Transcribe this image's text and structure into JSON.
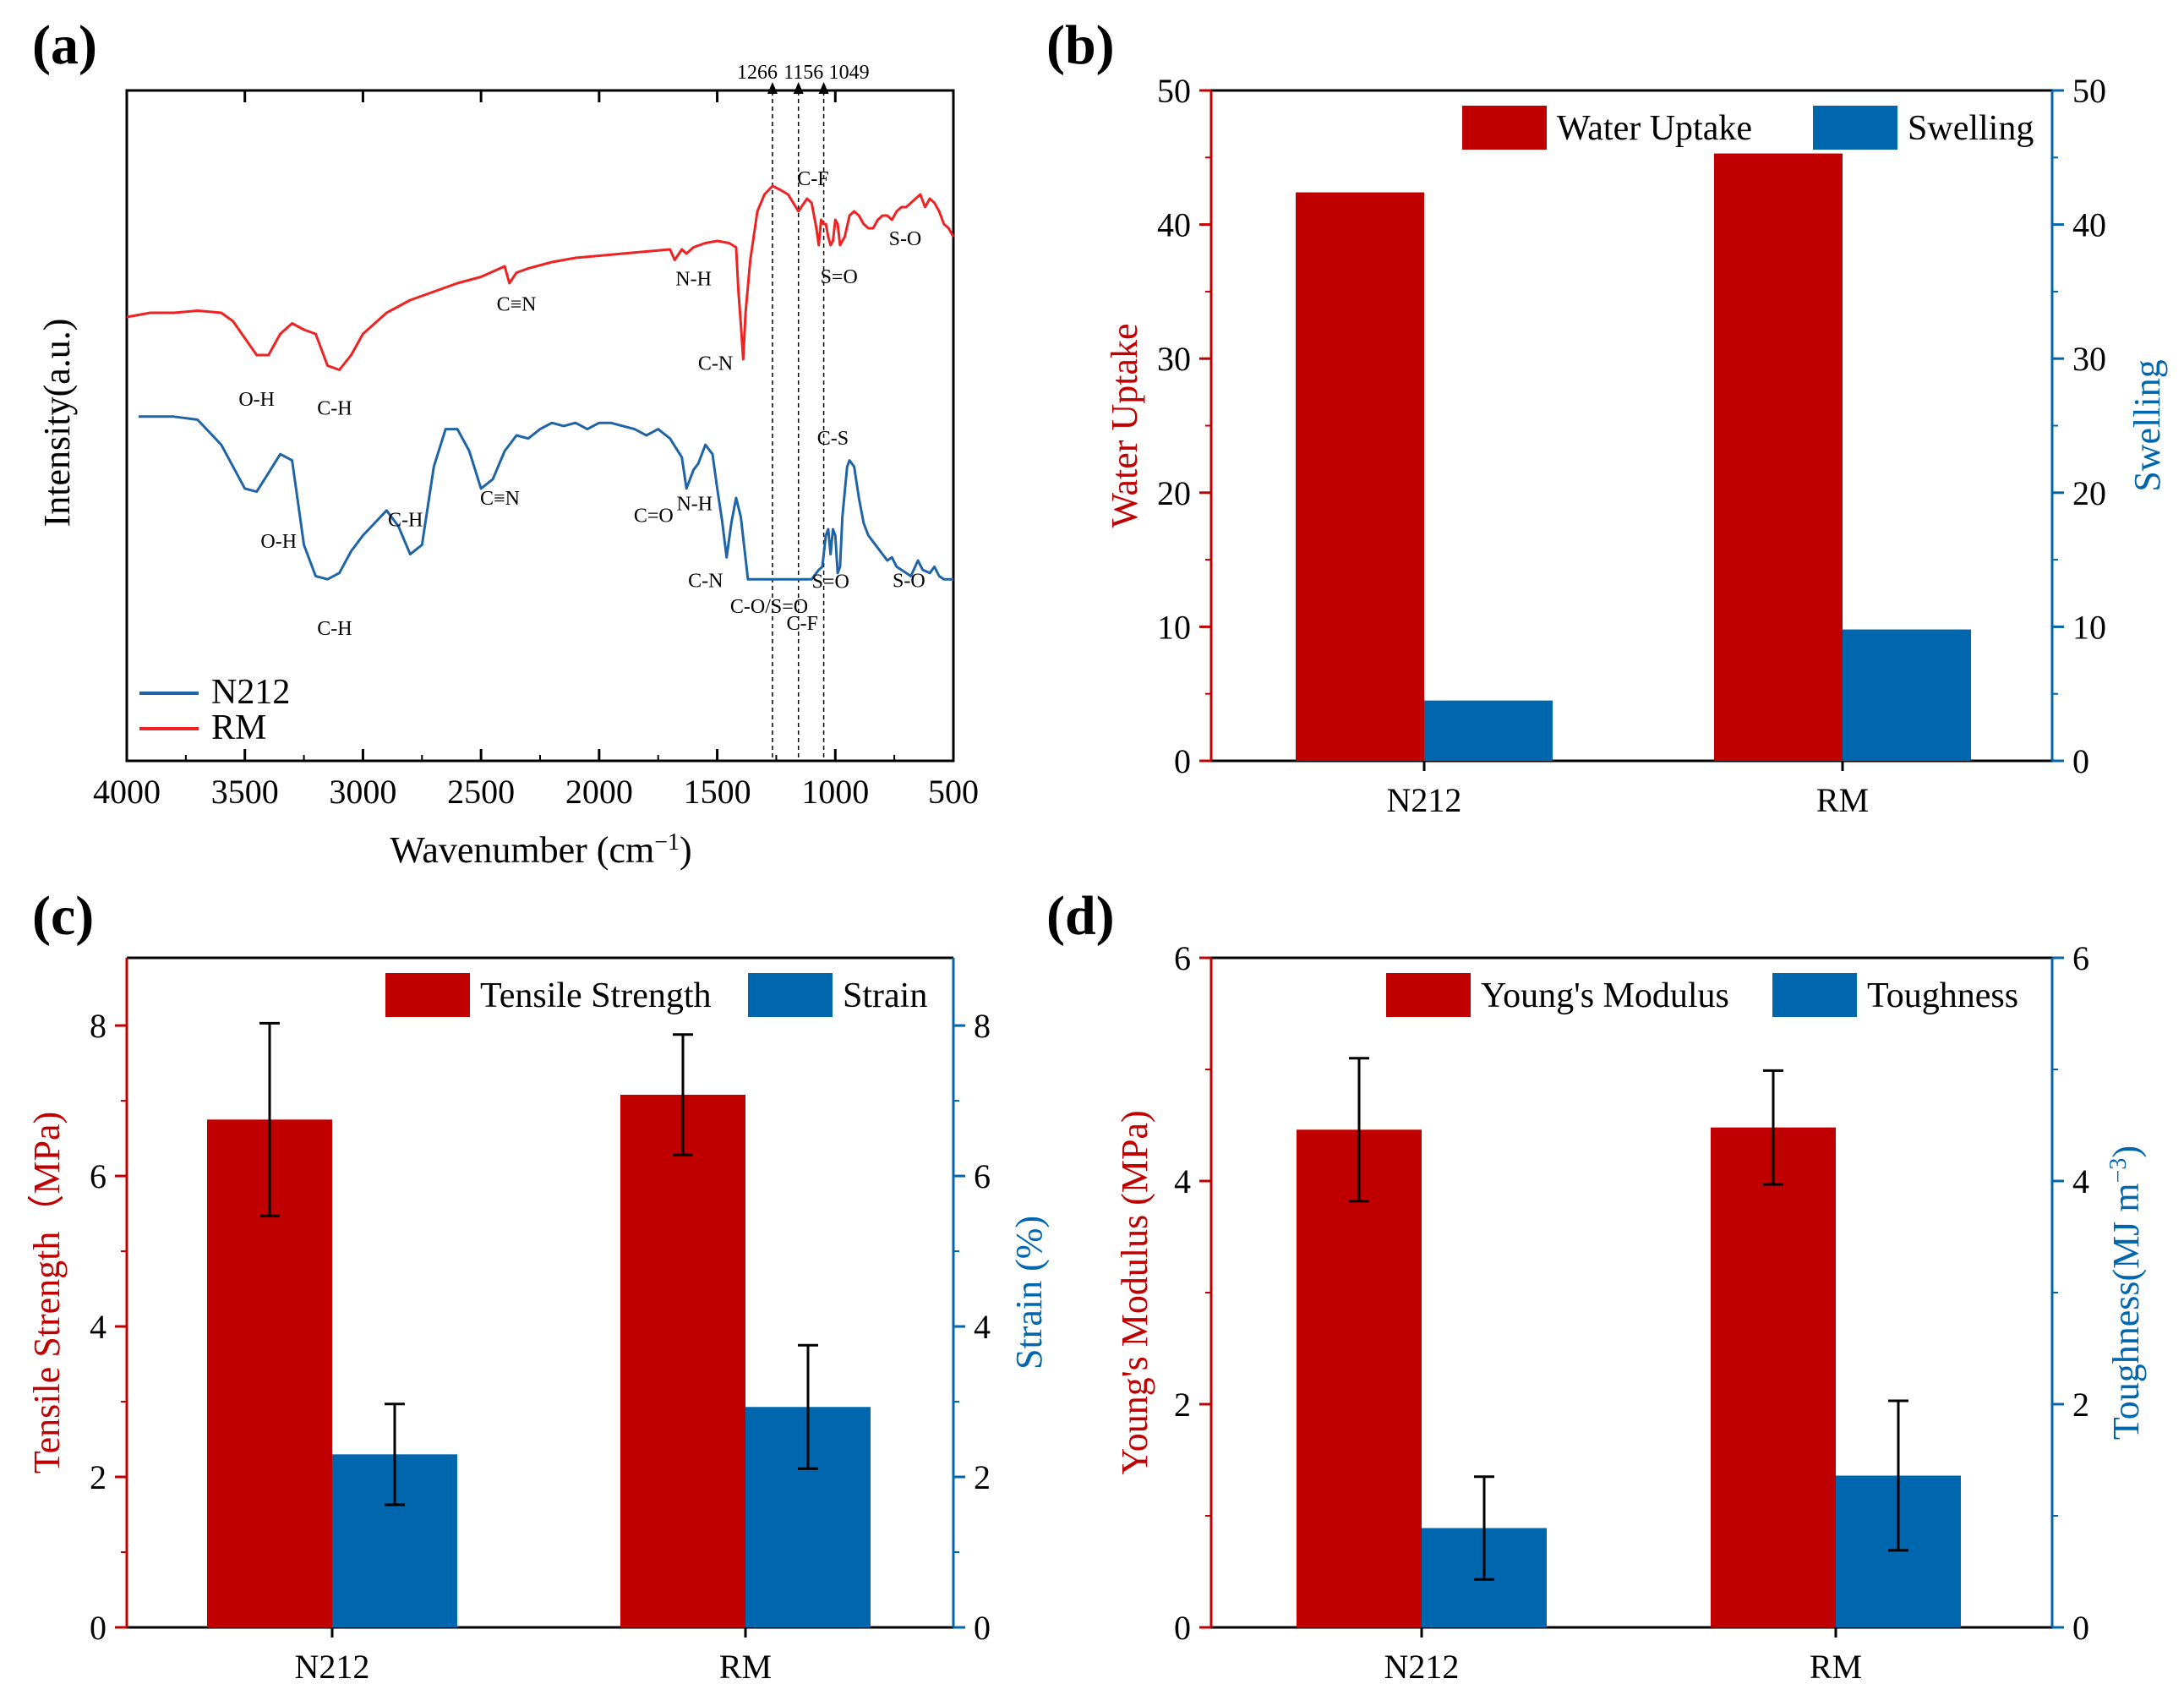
{
  "chart_data": [
    {
      "panel": "(a)",
      "type": "line",
      "xlabel_main": "Wavenumber (cm",
      "xlabel_sup": "−1",
      "xlabel_close": ")",
      "ylabel": "Intensity(a.u.)",
      "xlim": [
        4000,
        500
      ],
      "x_ticks": [
        "4000",
        "3500",
        "3000",
        "2500",
        "2000",
        "1500",
        "1000",
        "500"
      ],
      "x_tick_values": [
        4000,
        3500,
        3000,
        2500,
        2000,
        1500,
        1000,
        500
      ],
      "reference_lines": [
        {
          "label": "1266",
          "value": 1266
        },
        {
          "label": "1156",
          "value": 1156
        },
        {
          "label": "1049",
          "value": 1049
        }
      ],
      "series": [
        {
          "name": "N212",
          "color": "#1f64a6",
          "offset": 0,
          "x": [
            3950,
            3800,
            3700,
            3600,
            3500,
            3450,
            3400,
            3350,
            3300,
            3250,
            3200,
            3150,
            3100,
            3050,
            3000,
            2950,
            2900,
            2850,
            2800,
            2750,
            2700,
            2650,
            2600,
            2550,
            2500,
            2450,
            2400,
            2350,
            2300,
            2250,
            2200,
            2150,
            2100,
            2050,
            2000,
            1950,
            1900,
            1850,
            1800,
            1750,
            1700,
            1650,
            1630,
            1600,
            1580,
            1550,
            1520,
            1500,
            1480,
            1460,
            1440,
            1420,
            1400,
            1370,
            1300,
            1200,
            1100,
            1070,
            1055,
            1040,
            1030,
            1020,
            1010,
            1000,
            990,
            980,
            970,
            960,
            950,
            940,
            920,
            900,
            880,
            860,
            840,
            820,
            800,
            780,
            760,
            740,
            700,
            680,
            650,
            630,
            600,
            580,
            560,
            540,
            500
          ],
          "y": [
            0.56,
            0.56,
            0.55,
            0.47,
            0.33,
            0.32,
            0.38,
            0.44,
            0.42,
            0.15,
            0.05,
            0.04,
            0.06,
            0.13,
            0.18,
            0.22,
            0.26,
            0.21,
            0.12,
            0.15,
            0.4,
            0.52,
            0.52,
            0.45,
            0.33,
            0.36,
            0.45,
            0.5,
            0.49,
            0.52,
            0.54,
            0.53,
            0.54,
            0.52,
            0.54,
            0.54,
            0.53,
            0.52,
            0.5,
            0.52,
            0.49,
            0.43,
            0.33,
            0.39,
            0.41,
            0.47,
            0.44,
            0.33,
            0.23,
            0.11,
            0.22,
            0.3,
            0.24,
            0.04,
            0.04,
            0.04,
            0.04,
            0.07,
            0.08,
            0.18,
            0.2,
            0.12,
            0.2,
            0.18,
            0.06,
            0.08,
            0.24,
            0.32,
            0.4,
            0.42,
            0.4,
            0.3,
            0.22,
            0.18,
            0.16,
            0.14,
            0.12,
            0.1,
            0.11,
            0.08,
            0.06,
            0.05,
            0.1,
            0.07,
            0.06,
            0.08,
            0.05,
            0.04,
            0.04
          ]
        },
        {
          "name": "RM",
          "color": "#ee2222",
          "offset": 1,
          "x": [
            4000,
            3900,
            3800,
            3700,
            3600,
            3550,
            3500,
            3450,
            3400,
            3350,
            3300,
            3250,
            3200,
            3150,
            3100,
            3050,
            3000,
            2900,
            2800,
            2700,
            2600,
            2500,
            2400,
            2380,
            2350,
            2300,
            2200,
            2100,
            2000,
            1900,
            1800,
            1700,
            1680,
            1650,
            1630,
            1600,
            1550,
            1500,
            1450,
            1420,
            1410,
            1400,
            1390,
            1380,
            1360,
            1330,
            1300,
            1266,
            1230,
            1200,
            1156,
            1120,
            1100,
            1080,
            1070,
            1060,
            1050,
            1040,
            1030,
            1020,
            1010,
            1000,
            990,
            980,
            960,
            940,
            920,
            900,
            880,
            860,
            840,
            820,
            800,
            780,
            760,
            740,
            720,
            700,
            680,
            660,
            640,
            620,
            600,
            580,
            560,
            540,
            520,
            500
          ],
          "y": [
            0.28,
            0.3,
            0.3,
            0.31,
            0.3,
            0.26,
            0.18,
            0.1,
            0.1,
            0.2,
            0.25,
            0.22,
            0.2,
            0.05,
            0.03,
            0.1,
            0.2,
            0.3,
            0.36,
            0.4,
            0.44,
            0.47,
            0.52,
            0.44,
            0.49,
            0.51,
            0.54,
            0.56,
            0.57,
            0.58,
            0.59,
            0.6,
            0.55,
            0.6,
            0.58,
            0.61,
            0.63,
            0.64,
            0.63,
            0.61,
            0.4,
            0.25,
            0.08,
            0.3,
            0.55,
            0.78,
            0.86,
            0.9,
            0.88,
            0.86,
            0.78,
            0.84,
            0.82,
            0.7,
            0.62,
            0.74,
            0.72,
            0.72,
            0.66,
            0.62,
            0.64,
            0.74,
            0.72,
            0.62,
            0.66,
            0.76,
            0.78,
            0.76,
            0.72,
            0.7,
            0.7,
            0.74,
            0.76,
            0.76,
            0.74,
            0.78,
            0.8,
            0.8,
            0.82,
            0.84,
            0.86,
            0.8,
            0.84,
            0.82,
            0.78,
            0.72,
            0.7,
            0.66
          ]
        }
      ],
      "annotations": [
        {
          "series": "RM",
          "label": "O-H",
          "x": 3450
        },
        {
          "series": "RM",
          "label": "C-H",
          "x": 3120
        },
        {
          "series": "RM",
          "label": "C≡N",
          "x": 2350
        },
        {
          "series": "RM",
          "label": "N-H",
          "x": 1600
        },
        {
          "series": "RM",
          "label": "C-N",
          "x": 1400
        },
        {
          "series": "RM",
          "label": "C-F",
          "x": 1130
        },
        {
          "series": "RM",
          "label": "S=O",
          "x": 1020
        },
        {
          "series": "RM",
          "label": "S-O",
          "x": 740
        },
        {
          "series": "N212",
          "label": "O-H",
          "x": 3500
        },
        {
          "series": "N212",
          "label": "C-H",
          "x": 3120
        },
        {
          "series": "N212",
          "label": "C-H",
          "x": 2820
        },
        {
          "series": "N212",
          "label": "C≡N",
          "x": 2420
        },
        {
          "series": "N212",
          "label": "C=O",
          "x": 1680
        },
        {
          "series": "N212",
          "label": "N-H",
          "x": 1560
        },
        {
          "series": "N212",
          "label": "C-N",
          "x": 1460
        },
        {
          "series": "N212",
          "label": "C-O/S=O",
          "x": 1280
        },
        {
          "series": "N212",
          "label": "C-F",
          "x": 1140
        },
        {
          "series": "N212",
          "label": "C-S",
          "x": 1010
        },
        {
          "series": "N212",
          "label": "S=O",
          "x": 1020
        },
        {
          "series": "N212",
          "label": "S-O",
          "x": 760
        }
      ],
      "legend": [
        {
          "name": "N212",
          "color": "#1f64a6"
        },
        {
          "name": "RM",
          "color": "#ee2222"
        }
      ]
    },
    {
      "panel": "(b)",
      "type": "bar",
      "categories": [
        "N212",
        "RM"
      ],
      "series": [
        {
          "name": "Water Uptake",
          "color": "#c00000",
          "axis": "left",
          "values": [
            42.4,
            45.3
          ]
        },
        {
          "name": "Swelling",
          "color": "#0066ad",
          "axis": "right",
          "values": [
            4.5,
            9.8
          ]
        }
      ],
      "ylabel_left": "Water Uptake",
      "ylabel_right": "Swelling",
      "ylim_left": [
        0,
        50
      ],
      "ylim_right": [
        0,
        50
      ],
      "y_ticks_left": [
        0,
        10,
        20,
        30,
        40,
        50
      ],
      "y_ticks_right": [
        0,
        10,
        20,
        30,
        40,
        50
      ],
      "legend_position": "top-right"
    },
    {
      "panel": "(c)",
      "type": "bar",
      "categories": [
        "N212",
        "RM"
      ],
      "series": [
        {
          "name": "Tensile Strength",
          "color": "#c00000",
          "axis": "left",
          "values": [
            6.75,
            7.08
          ],
          "errors": [
            1.28,
            0.8
          ]
        },
        {
          "name": "Strain",
          "color": "#0066ad",
          "axis": "right",
          "values": [
            2.3,
            2.93
          ],
          "errors": [
            0.67,
            0.82
          ]
        }
      ],
      "ylabel_left": "Tensile Strength（MPa)",
      "ylabel_right": "Strain (%)",
      "ylim_left": [
        0,
        8.9
      ],
      "ylim_right": [
        0,
        8.9
      ],
      "y_ticks_left": [
        0,
        2,
        4,
        6,
        8
      ],
      "y_ticks_right": [
        0,
        2,
        4,
        6,
        8
      ],
      "legend_position": "top-right"
    },
    {
      "panel": "(d)",
      "type": "bar",
      "categories": [
        "N212",
        "RM"
      ],
      "series": [
        {
          "name": "Young's Modulus",
          "color": "#c00000",
          "axis": "left",
          "values": [
            4.46,
            4.48
          ],
          "errors": [
            0.64,
            0.51
          ]
        },
        {
          "name": "Toughness",
          "color": "#0066ad",
          "axis": "right",
          "values": [
            0.89,
            1.36
          ],
          "errors": [
            0.46,
            0.67
          ]
        }
      ],
      "ylabel_left": "Young's Modulus (MPa)",
      "ylabel_right_main": "Toughness(MJ m",
      "ylabel_right_sup": "−3",
      "ylabel_right_close": ")",
      "ylim_left": [
        0,
        6
      ],
      "ylim_right": [
        0,
        6
      ],
      "y_ticks_left": [
        0,
        2,
        4,
        6
      ],
      "y_ticks_right": [
        0,
        2,
        4,
        6
      ],
      "legend_position": "top-right"
    }
  ]
}
